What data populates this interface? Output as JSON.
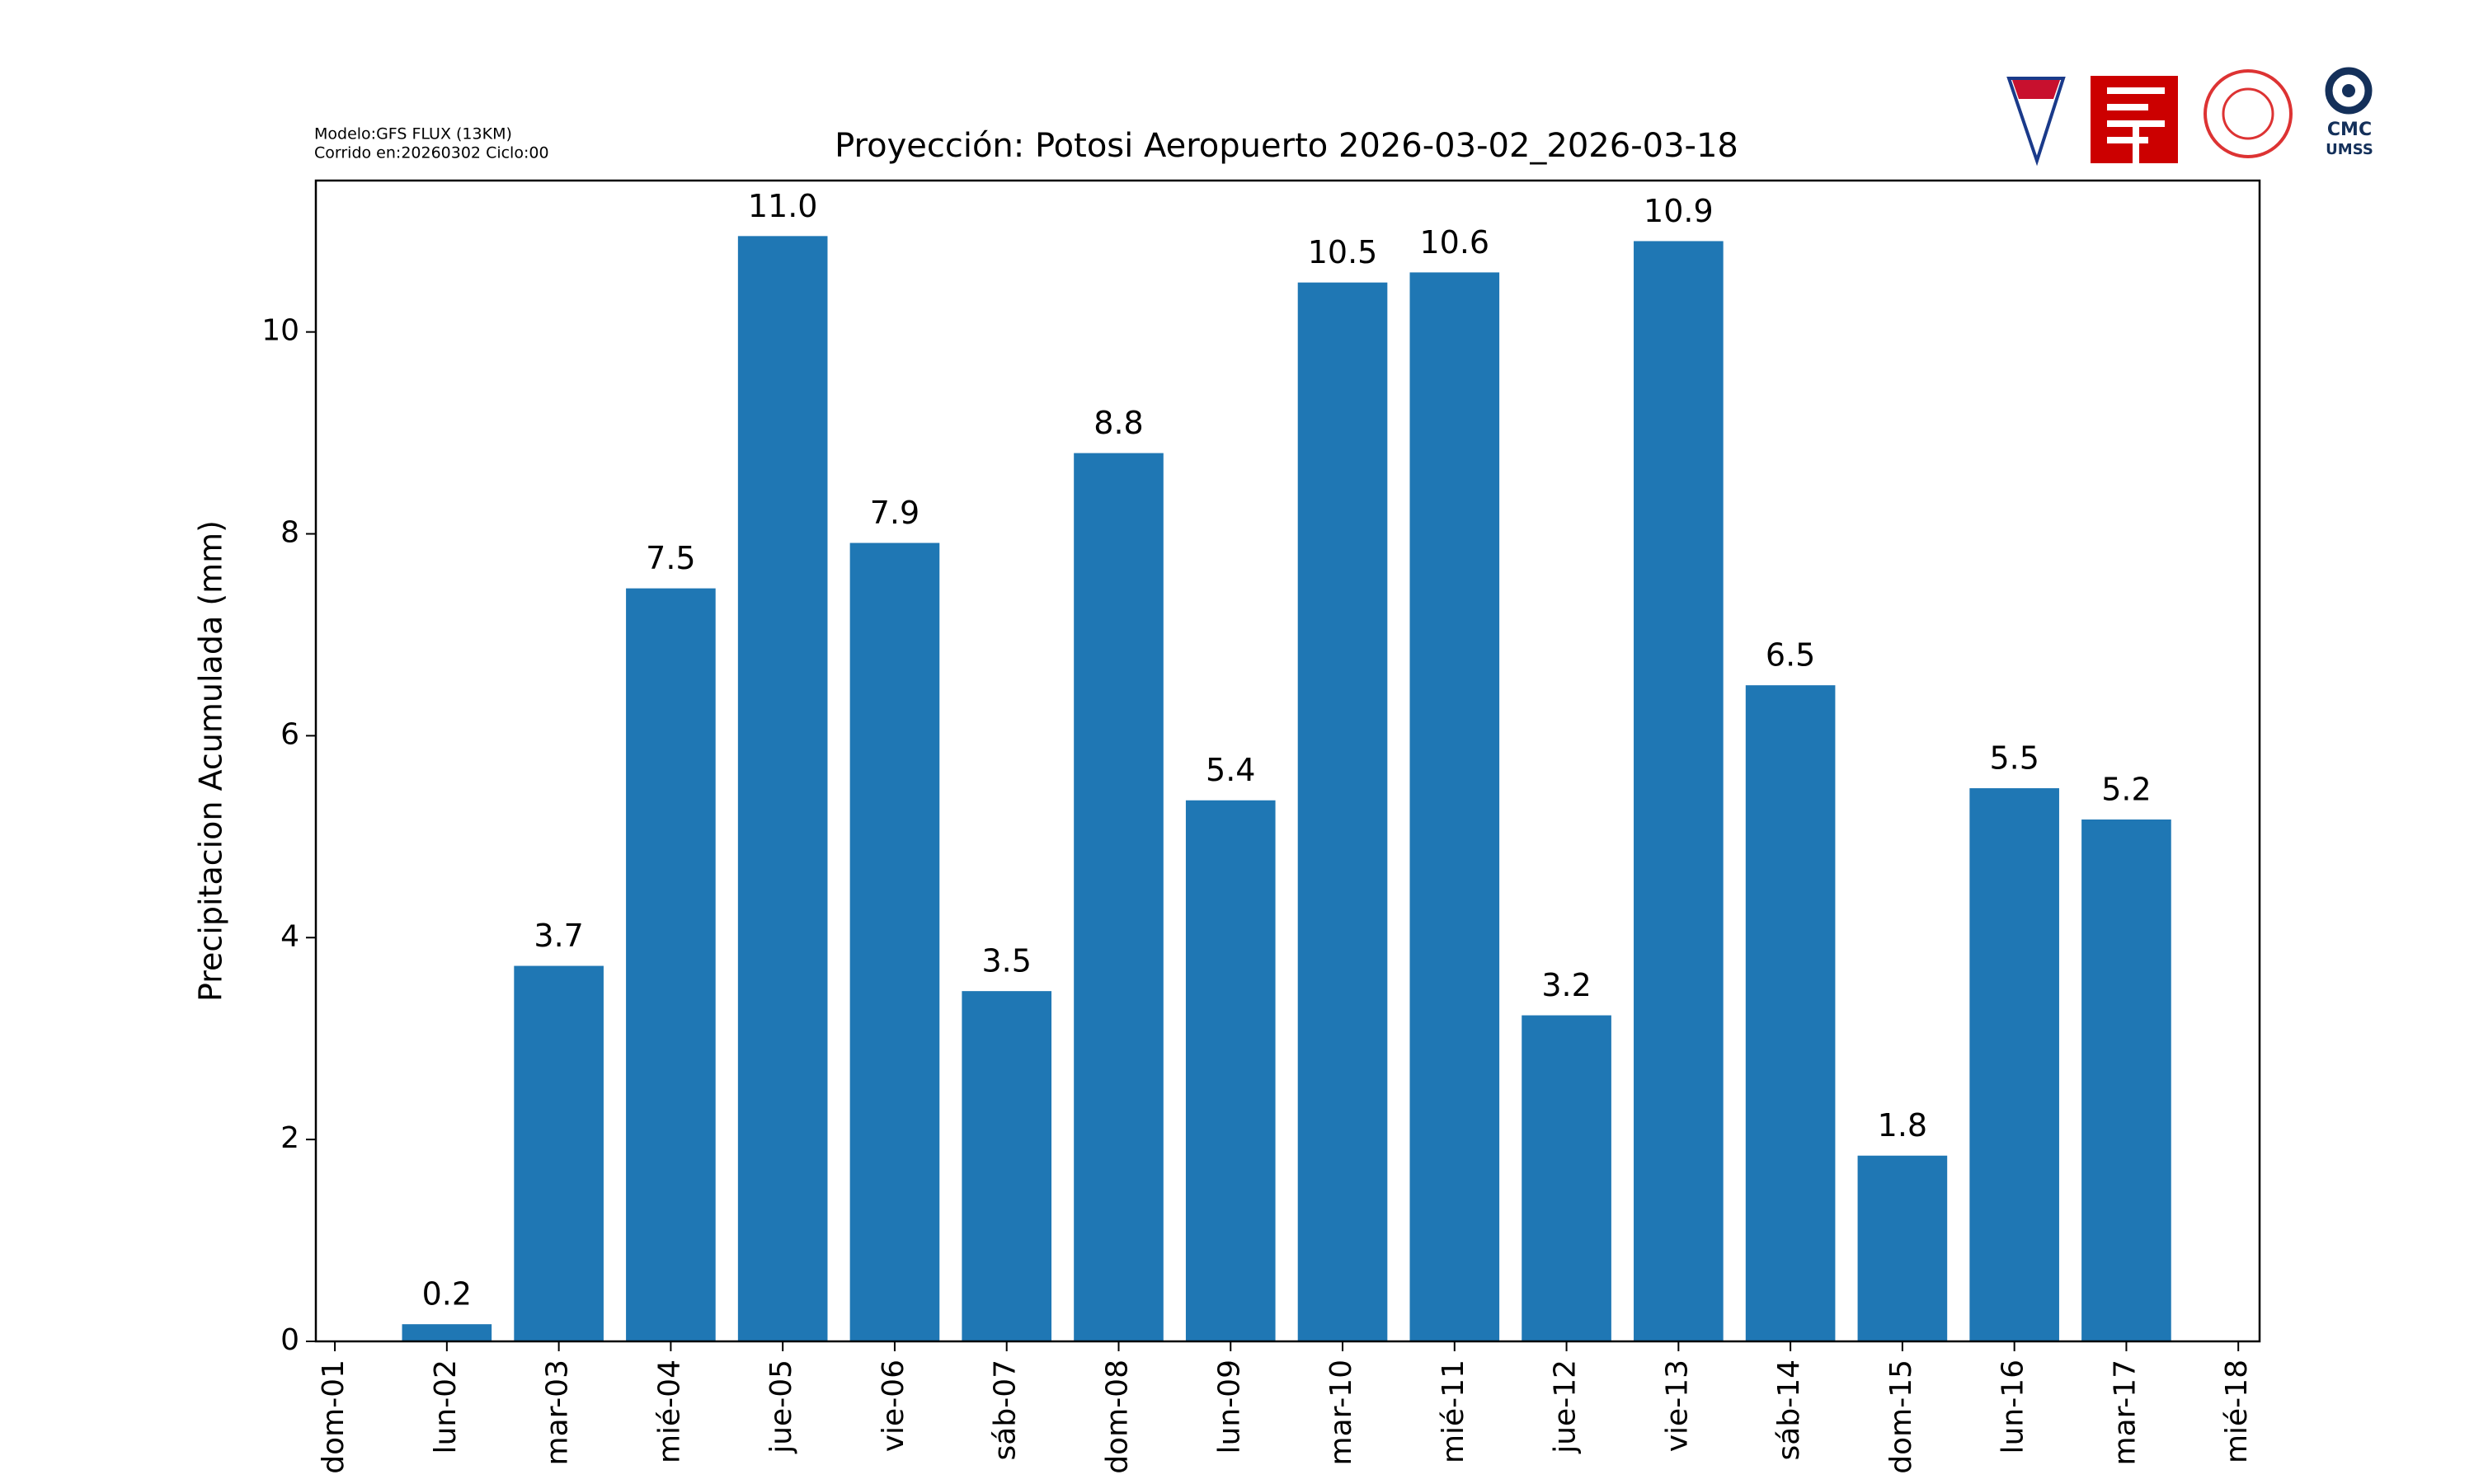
{
  "chart_data": {
    "type": "bar",
    "title": "Proyección: Potosi Aeropuerto  2026-03-02_2026-03-18",
    "subtitle": [
      "Modelo:GFS FLUX (13KM)",
      "Corrido en:20260302 Ciclo:00"
    ],
    "y_label": "Precipitacion Acumulada (mm)",
    "categories": [
      "dom-01",
      "lun-02",
      "mar-03",
      "mié-04",
      "jue-05",
      "vie-06",
      "sáb-07",
      "dom-08",
      "lun-09",
      "mar-10",
      "mié-11",
      "jue-12",
      "vie-13",
      "sáb-14",
      "dom-15",
      "lun-16",
      "mar-17",
      "mié-18"
    ],
    "values": [
      null,
      0.17,
      3.72,
      7.46,
      10.95,
      7.91,
      3.47,
      8.8,
      5.36,
      10.49,
      10.59,
      3.23,
      10.9,
      6.5,
      1.84,
      5.48,
      5.17,
      null
    ],
    "value_labels": [
      null,
      "0.2",
      "3.7",
      "7.5",
      "11.0",
      "7.9",
      "3.5",
      "8.8",
      "5.4",
      "10.5",
      "10.6",
      "3.2",
      "10.9",
      "6.5",
      "1.8",
      "5.5",
      "5.2",
      null
    ],
    "color": "#1f77b4",
    "ylim": [
      0,
      11.5
    ],
    "yticks": [
      0,
      2,
      4,
      6,
      8,
      10
    ],
    "logo_texts": [
      "CMC",
      "UMSS"
    ]
  }
}
